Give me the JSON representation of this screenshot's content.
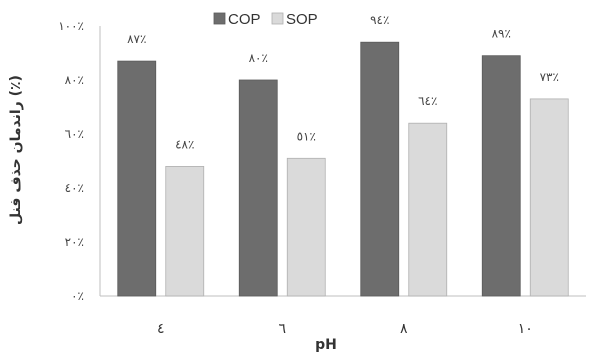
{
  "chart_data": {
    "type": "bar",
    "categories": [
      "٤",
      "٦",
      "٨",
      "١٠"
    ],
    "series": [
      {
        "name": "COP",
        "values": [
          87,
          80,
          94,
          89
        ],
        "labels": [
          "٨٧٪",
          "٨٠٪",
          "٩٤٪",
          "٨٩٪"
        ],
        "color": "#6d6d6d"
      },
      {
        "name": "SOP",
        "values": [
          48,
          51,
          64,
          73
        ],
        "labels": [
          "٤٨٪",
          "٥١٪",
          "٦٤٪",
          "٧٣٪"
        ],
        "color": "#dadada"
      }
    ],
    "title": "",
    "xlabel": "pH",
    "ylabel": "راندمان حذف فنل (٪)",
    "ylim": [
      0,
      100
    ],
    "yticks": [
      0,
      20,
      40,
      60,
      80,
      100
    ],
    "ytick_labels": [
      "٠٪",
      "٢٠٪",
      "٤٠٪",
      "٦٠٪",
      "٨٠٪",
      "١٠٠٪"
    ],
    "grid": false,
    "legend_position": "top"
  }
}
